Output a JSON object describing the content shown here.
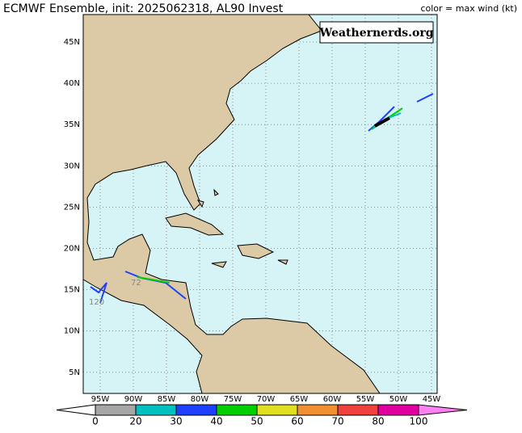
{
  "header": {
    "title": "ECMWF Ensemble, init: 2025062318, AL90 Invest",
    "legend_label": "color = max wind (kt)",
    "watermark": "Weathernerds.org"
  },
  "map": {
    "lat_labels": [
      "45N",
      "40N",
      "35N",
      "30N",
      "25N",
      "20N",
      "15N",
      "10N",
      "5N"
    ],
    "lon_labels": [
      "95W",
      "90W",
      "85W",
      "80W",
      "75W",
      "70W",
      "65W",
      "60W",
      "55W",
      "50W",
      "45W"
    ],
    "annotations": [
      "72",
      "120"
    ]
  },
  "colorbar": {
    "ticks": [
      0,
      20,
      30,
      40,
      50,
      60,
      70,
      80,
      100
    ],
    "colors": [
      "#a6a6a6",
      "#00c0c0",
      "#2040ff",
      "#00d000",
      "#e0e020",
      "#f09030",
      "#f04040",
      "#e000a0"
    ]
  }
}
